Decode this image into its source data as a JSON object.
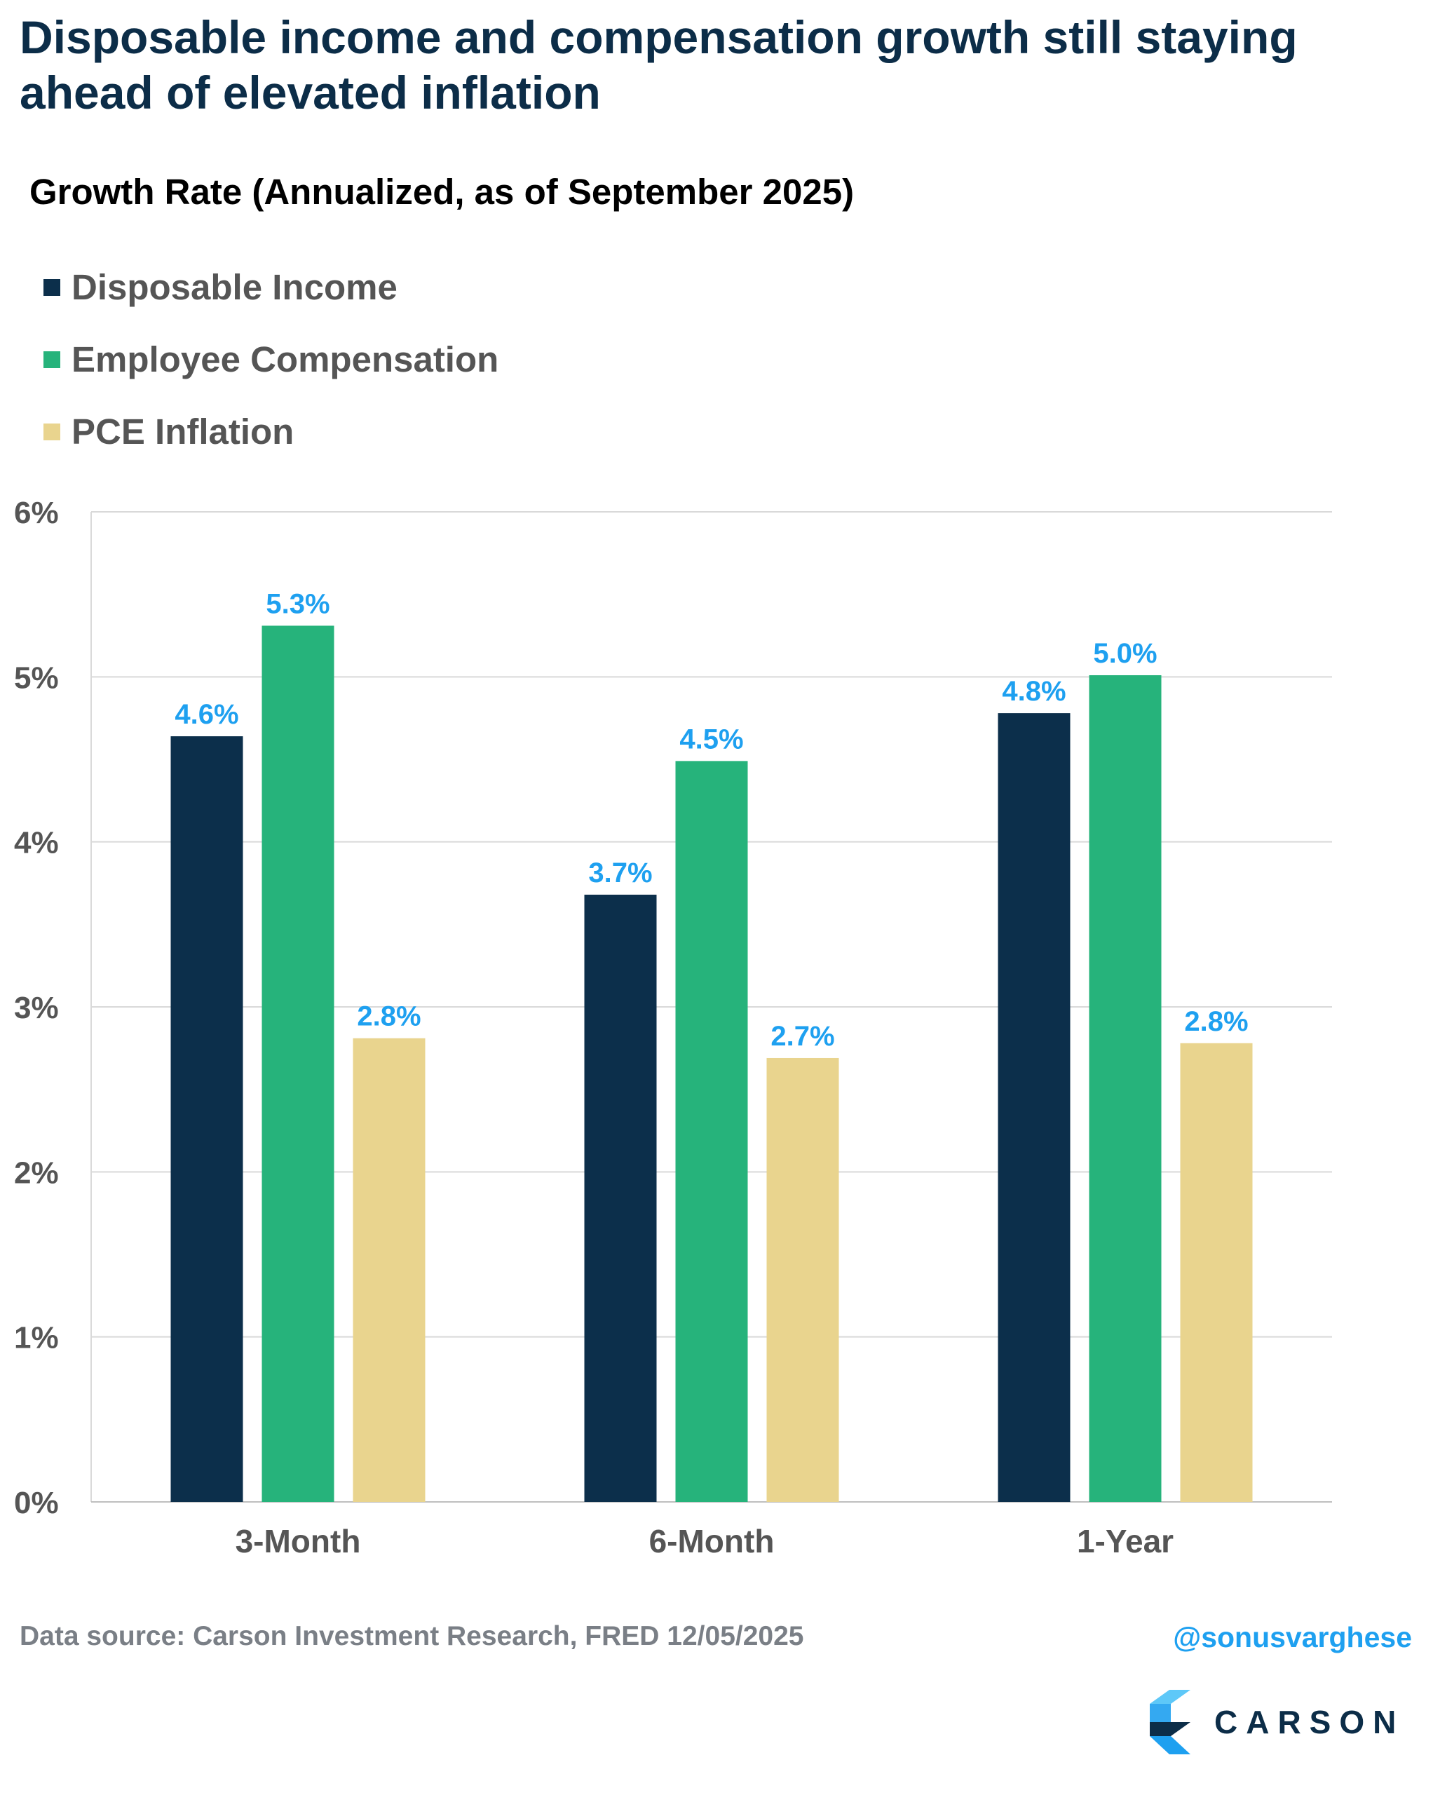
{
  "title": "Disposable income and compensation growth still staying ahead of elevated inflation",
  "colors": {
    "disposable_income": "#0c2f4b",
    "employee_compensation": "#26b37b",
    "pce_inflation": "#e9d48e",
    "data_label": "#1ea0f0",
    "axis_text": "#555555",
    "grid": "#d9d9d9"
  },
  "chart_data": {
    "type": "bar",
    "title": "Growth Rate (Annualized, as of September 2025)",
    "categories": [
      "3-Month",
      "6-Month",
      "1-Year"
    ],
    "series": [
      {
        "name": "Disposable Income",
        "values": [
          4.64,
          3.68,
          4.78
        ],
        "labels": [
          "4.6%",
          "3.7%",
          "4.8%"
        ]
      },
      {
        "name": "Employee Compensation",
        "values": [
          5.31,
          4.49,
          5.01
        ],
        "labels": [
          "5.3%",
          "4.5%",
          "5.0%"
        ]
      },
      {
        "name": "PCE Inflation",
        "values": [
          2.81,
          2.69,
          2.78
        ],
        "labels": [
          "2.8%",
          "2.7%",
          "2.8%"
        ]
      }
    ],
    "ylim": [
      0,
      6
    ],
    "yticks": [
      0,
      1,
      2,
      3,
      4,
      5,
      6
    ],
    "ytick_labels": [
      "0%",
      "1%",
      "2%",
      "3%",
      "4%",
      "5%",
      "6%"
    ],
    "xlabel": "",
    "ylabel": "",
    "grid": true,
    "legend_position": "top-left"
  },
  "footer": {
    "source": "Data source: Carson Investment Research, FRED  12/05/2025",
    "handle": "@sonusvarghese"
  },
  "logo": {
    "text": "CARSON",
    "icon": "carson-logo-icon"
  }
}
